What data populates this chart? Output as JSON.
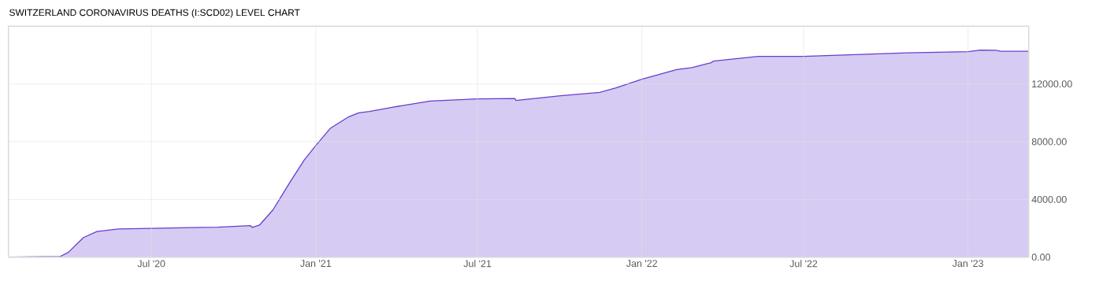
{
  "chart_data": {
    "type": "area",
    "title": "SWITZERLAND CORONAVIRUS DEATHS (I:SCD02) LEVEL CHART",
    "x": [
      "2020-01-23",
      "2020-03-21",
      "2020-03-30",
      "2020-04-16",
      "2020-05-01",
      "2020-05-25",
      "2020-07-01",
      "2020-09-13",
      "2020-10-20",
      "2020-10-22",
      "2020-10-30",
      "2020-11-14",
      "2020-12-04",
      "2020-12-19",
      "2021-01-01",
      "2021-01-17",
      "2021-01-26",
      "2021-02-07",
      "2021-02-18",
      "2021-03-02",
      "2021-03-26",
      "2021-05-09",
      "2021-07-01",
      "2021-08-12",
      "2021-08-13",
      "2021-10-02",
      "2021-11-15",
      "2021-12-03",
      "2022-01-01",
      "2022-02-09",
      "2022-02-26",
      "2022-03-16",
      "2022-03-19",
      "2022-03-22",
      "2022-05-11",
      "2022-07-01",
      "2022-10-25",
      "2023-01-01",
      "2023-01-15",
      "2023-02-01",
      "2023-02-07",
      "2023-03-10"
    ],
    "values": [
      0,
      50,
      330,
      1360,
      1780,
      1950,
      2000,
      2080,
      2180,
      2060,
      2220,
      3270,
      5280,
      6730,
      7730,
      8910,
      9270,
      9730,
      10000,
      10090,
      10370,
      10820,
      10970,
      10990,
      10860,
      11180,
      11420,
      11730,
      12330,
      13000,
      13130,
      13420,
      13460,
      13580,
      13910,
      13910,
      14150,
      14240,
      14350,
      14330,
      14260,
      14260
    ],
    "color": "#d6cbf2",
    "xlim": [
      "2020-01-23",
      "2023-03-10"
    ],
    "xticks": [
      {
        "value": "2020-07-01",
        "label": "Jul '20"
      },
      {
        "value": "2021-01-01",
        "label": "Jan '21"
      },
      {
        "value": "2021-07-01",
        "label": "Jul '21"
      },
      {
        "value": "2022-01-01",
        "label": "Jan '22"
      },
      {
        "value": "2022-07-01",
        "label": "Jul '22"
      },
      {
        "value": "2023-01-01",
        "label": "Jan '23"
      }
    ],
    "ylim": [
      0,
      16000
    ],
    "yticks": [
      {
        "value": 0,
        "label": "0.00"
      },
      {
        "value": 4000,
        "label": "4000.00"
      },
      {
        "value": 8000,
        "label": "8000.00"
      },
      {
        "value": 12000,
        "label": "12000.00"
      }
    ],
    "grid": true
  }
}
